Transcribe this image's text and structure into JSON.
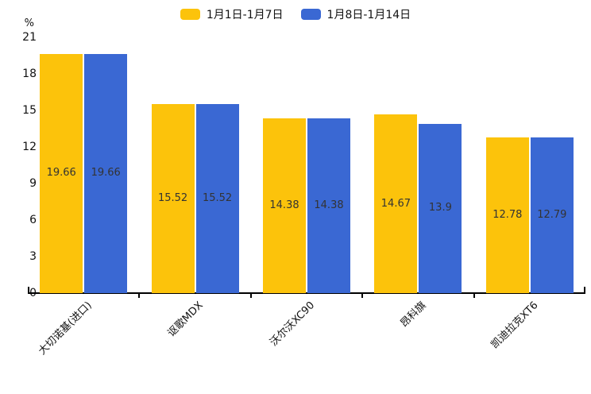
{
  "chart_data": {
    "type": "bar",
    "title": "",
    "xlabel": "",
    "ylabel": "%",
    "categories": [
      "大切诺基(进口)",
      "讴歌MDX",
      "沃尔沃XC90",
      "昂科旗",
      "凯迪拉克XT6"
    ],
    "series": [
      {
        "name": "1月1日-1月7日",
        "color": "#FCC30B",
        "values": [
          19.66,
          15.52,
          14.38,
          14.67,
          12.78
        ]
      },
      {
        "name": "1月8日-1月14日",
        "color": "#3A68D3",
        "values": [
          19.66,
          15.52,
          14.38,
          13.9,
          12.79
        ]
      }
    ],
    "y_ticks": [
      0,
      3,
      6,
      9,
      12,
      15,
      18,
      21
    ],
    "ylim": [
      0,
      21
    ],
    "grid": false,
    "legend_position": "top-center",
    "value_labels": "centered-inside-bars",
    "value_label_color": "#333333",
    "axis_color": "#000000",
    "x_label_rotation_deg": 45
  }
}
